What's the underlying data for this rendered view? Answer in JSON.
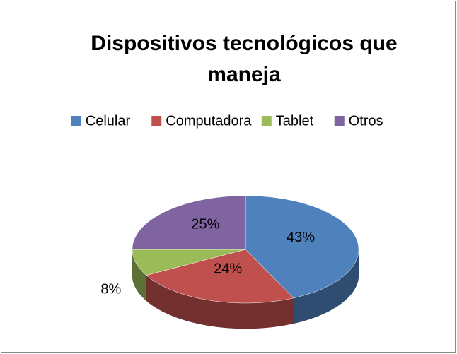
{
  "chart_data": {
    "type": "pie3d",
    "title": "Dispositivos tecnológicos que maneja",
    "categories": [
      "Celular",
      "Computadora",
      "Tablet",
      "Otros"
    ],
    "values": [
      43,
      24,
      8,
      25
    ],
    "value_labels": [
      "43%",
      "24%",
      "8%",
      "25%"
    ],
    "colors": [
      "#4f81bd",
      "#c0504d",
      "#9bbb59",
      "#8064a2"
    ],
    "legend": "top"
  }
}
